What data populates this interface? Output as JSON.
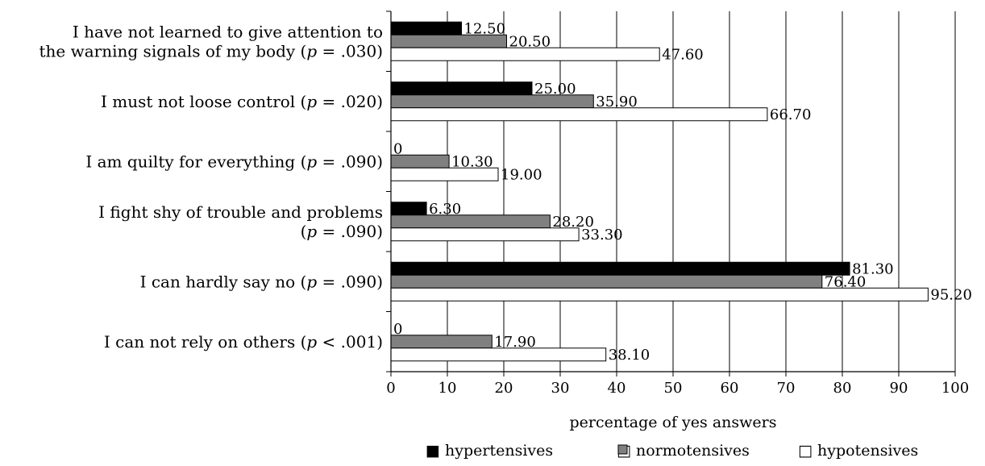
{
  "chart_data": {
    "type": "bar",
    "orientation": "horizontal",
    "categories": [
      {
        "lines": [
          [
            {
              "t": "I have not learned to give attention to"
            }
          ],
          [
            {
              "t": "the warning signals of my body ("
            },
            {
              "t": "p",
              "i": true
            },
            {
              "t": " = .030)"
            }
          ]
        ]
      },
      {
        "lines": [
          [
            {
              "t": "I must not loose control ("
            },
            {
              "t": "p",
              "i": true
            },
            {
              "t": " = .020)"
            }
          ]
        ]
      },
      {
        "lines": [
          [
            {
              "t": "I am quilty for everything ("
            },
            {
              "t": "p",
              "i": true
            },
            {
              "t": " = .090)"
            }
          ]
        ]
      },
      {
        "lines": [
          [
            {
              "t": "I fight shy of trouble and problems"
            }
          ],
          [
            {
              "t": "("
            },
            {
              "t": "p",
              "i": true
            },
            {
              "t": " = .090)"
            }
          ]
        ]
      },
      {
        "lines": [
          [
            {
              "t": "I can hardly say no ("
            },
            {
              "t": "p",
              "i": true
            },
            {
              "t": " = .090)"
            }
          ]
        ]
      },
      {
        "lines": [
          [
            {
              "t": "I can not rely on others ("
            },
            {
              "t": "p",
              "i": true
            },
            {
              "t": " < .001)"
            }
          ]
        ]
      }
    ],
    "series": [
      {
        "name": "hypertensives",
        "color": "#000000",
        "values": [
          12.5,
          25.0,
          0,
          6.3,
          81.3,
          0
        ],
        "labels": [
          "12.50",
          "25.00",
          "0",
          "6.30",
          "81.30",
          "0"
        ]
      },
      {
        "name": "normotensives",
        "color": "#808080",
        "values": [
          20.5,
          35.9,
          10.3,
          28.2,
          76.4,
          17.9
        ],
        "labels": [
          "20.50",
          "35.90",
          "10.30",
          "28.20",
          "76.40",
          "17.90"
        ]
      },
      {
        "name": "hypotensives",
        "color": "#ffffff",
        "values": [
          47.6,
          66.7,
          19.0,
          33.3,
          95.2,
          38.1
        ],
        "labels": [
          "47.60",
          "66.70",
          "19.00",
          "33.30",
          "95.20",
          "38.10"
        ]
      }
    ],
    "legend_symbols": [
      "■",
      "□",
      "□"
    ],
    "xlabel": "percentage of yes answers",
    "xlim": [
      0,
      100
    ],
    "xticks": [
      0,
      10,
      20,
      30,
      40,
      50,
      60,
      70,
      80,
      90,
      100
    ],
    "grid": "vertical",
    "legend_position": "bottom"
  }
}
